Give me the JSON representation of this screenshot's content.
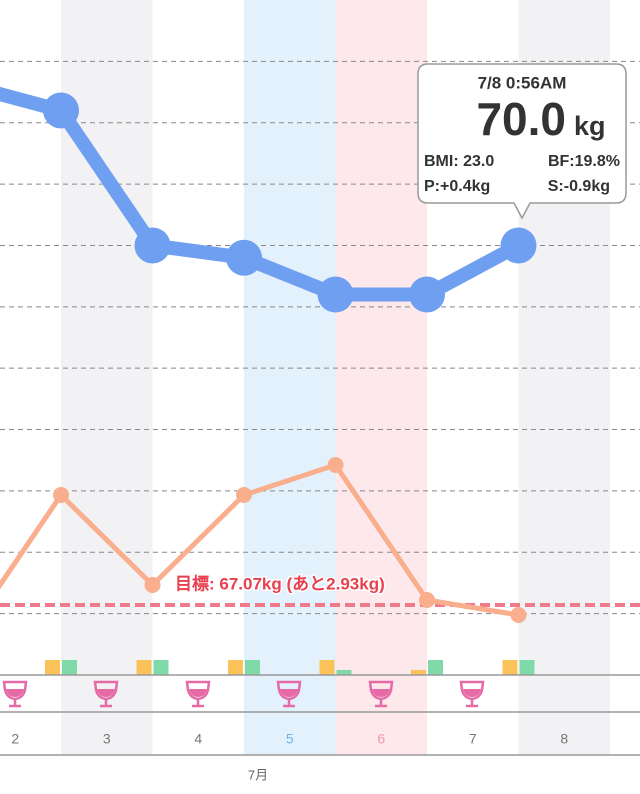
{
  "chart_data": {
    "type": "line",
    "categories": [
      "2",
      "3",
      "4",
      "5",
      "6",
      "7",
      "8"
    ],
    "month_label": "7月",
    "band_colors": [
      null,
      "#f2f2f4",
      null,
      "#e3f1fc",
      "#fde8ec",
      null,
      "#f2f2f4"
    ],
    "label_colors": [
      "#777777",
      "#777777",
      "#777777",
      "#6fb6ee",
      "#f29aa8",
      "#777777",
      "#777777"
    ],
    "ylim": [
      66.5,
      72.0
    ],
    "yticks": [
      67.0,
      67.5,
      68.0,
      68.5,
      69.0,
      69.5,
      70.0,
      70.5,
      71.0,
      71.5
    ],
    "y2lim": [
      19.4,
      23.9
    ],
    "grid": true,
    "series": [
      {
        "name": "weight",
        "color": "#6f9ff0",
        "values": [
          71.3,
          71.1,
          70.0,
          69.9,
          69.6,
          69.6,
          70.0
        ]
      },
      {
        "name": "body fat",
        "color": "#f9ae8e",
        "axis": "y2",
        "values": [
          19.7,
          20.6,
          20.0,
          20.6,
          20.8,
          19.9,
          19.8
        ]
      }
    ],
    "indicators": {
      "lim": [
        0,
        3
      ],
      "series": [
        {
          "color": "#fbc25a",
          "values": [
            null,
            3,
            3,
            3,
            3,
            1,
            3
          ]
        },
        {
          "color": "#7fd9a8",
          "values": [
            null,
            3,
            3,
            3,
            1,
            3,
            3
          ]
        }
      ]
    },
    "goal": {
      "value": 67.07,
      "label": "目標: 67.07kg (あと2.93kg)",
      "color": "#f07a8a"
    },
    "tooltip": {
      "time": "7/8 0:56AM",
      "weight": "70.0",
      "unit": "kg",
      "bmi": "BMI: 23.0",
      "bf": "BF:19.8%",
      "p": "P:+0.4kg",
      "s": "S:-0.9kg"
    }
  }
}
